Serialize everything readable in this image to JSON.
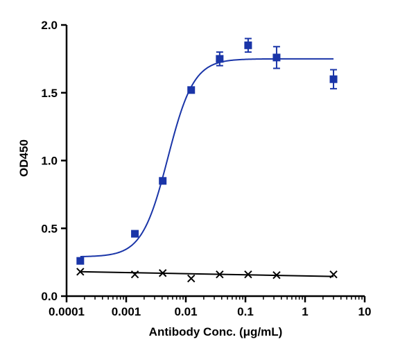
{
  "chart_data": {
    "type": "scatter",
    "title": "",
    "xlabel": "Antibody Conc. (μg/mL)",
    "ylabel": "OD450",
    "xscale": "log",
    "xlim": [
      0.0001,
      10
    ],
    "ylim": [
      0.0,
      2.0
    ],
    "x_ticks": [
      "0.0001",
      "0.001",
      "0.01",
      "0.1",
      "1",
      "10"
    ],
    "y_ticks": [
      "0.0",
      "0.5",
      "1.0",
      "1.5",
      "2.0"
    ],
    "grid": false,
    "series": [
      {
        "color": "#1a35a8",
        "marker": "square",
        "fit": "sigmoid",
        "fit_params": {
          "bottom": 0.29,
          "top": 1.75,
          "ec50": 0.005,
          "hill": 2.0
        },
        "points": [
          {
            "x": 0.00017,
            "y": 0.26,
            "err": 0.0
          },
          {
            "x": 0.0014,
            "y": 0.46,
            "err": 0.0
          },
          {
            "x": 0.0041,
            "y": 0.85,
            "err": 0.0
          },
          {
            "x": 0.0123,
            "y": 1.52,
            "err": 0.0
          },
          {
            "x": 0.037,
            "y": 1.75,
            "err": 0.05
          },
          {
            "x": 0.111,
            "y": 1.85,
            "err": 0.05
          },
          {
            "x": 0.333,
            "y": 1.76,
            "err": 0.08
          },
          {
            "x": 3.0,
            "y": 1.6,
            "err": 0.07
          }
        ]
      },
      {
        "color": "#000000",
        "marker": "x",
        "fit": "linear",
        "fit_line": {
          "x": [
            0.00017,
            3.0
          ],
          "y": [
            0.18,
            0.145
          ]
        },
        "points": [
          {
            "x": 0.00017,
            "y": 0.18
          },
          {
            "x": 0.0014,
            "y": 0.16
          },
          {
            "x": 0.0041,
            "y": 0.17
          },
          {
            "x": 0.0123,
            "y": 0.13
          },
          {
            "x": 0.037,
            "y": 0.16
          },
          {
            "x": 0.111,
            "y": 0.16
          },
          {
            "x": 0.333,
            "y": 0.155
          },
          {
            "x": 3.0,
            "y": 0.16
          }
        ]
      }
    ]
  }
}
